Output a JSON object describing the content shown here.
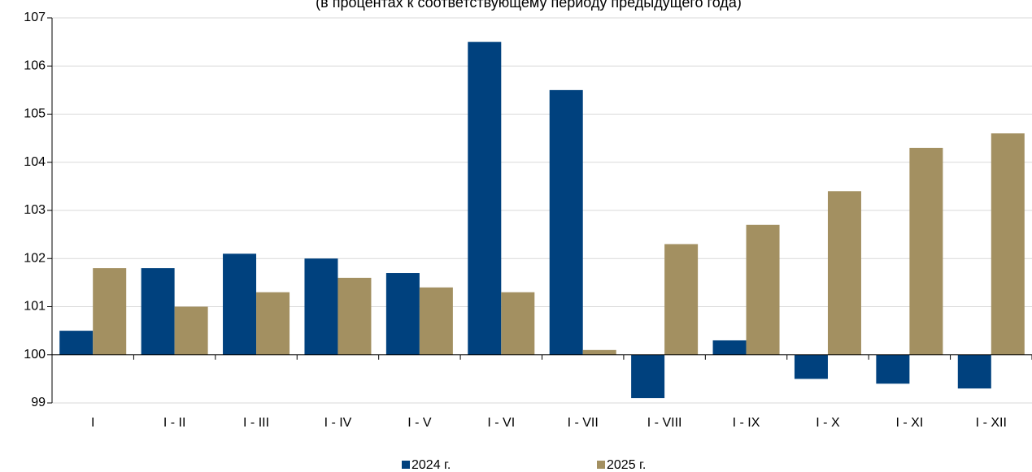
{
  "chart_data": {
    "type": "bar",
    "subtitle": "(в процентах к соответствующему периоду предыдущего года)",
    "categories": [
      "I",
      "I - II",
      "I - III",
      "I - IV",
      "I - V",
      "I - VI",
      "I - VII",
      "I - VIII",
      "I - IX",
      "I - X",
      "I - XI",
      "I - XII"
    ],
    "series": [
      {
        "name": "2024 г.",
        "color": "#00417e",
        "values": [
          100.5,
          101.8,
          102.1,
          102.0,
          101.7,
          106.5,
          105.5,
          99.1,
          100.3,
          99.5,
          99.4,
          99.3
        ]
      },
      {
        "name": "2025 г.",
        "color": "#a39061",
        "values": [
          101.8,
          101.0,
          101.3,
          101.6,
          101.4,
          101.3,
          100.1,
          102.3,
          102.7,
          103.4,
          104.3,
          104.6
        ]
      }
    ],
    "ylim": [
      99,
      107
    ],
    "yticks": [
      99,
      100,
      101,
      102,
      103,
      104,
      105,
      106,
      107
    ],
    "baseline": 100,
    "grid": true,
    "legend": "bottom"
  }
}
